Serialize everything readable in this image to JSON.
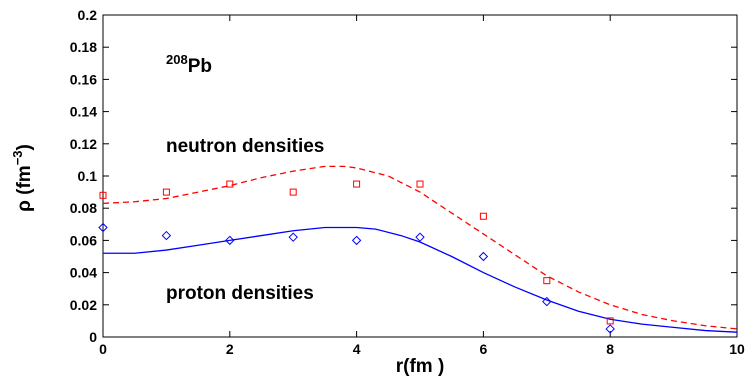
{
  "chart_data": {
    "type": "line",
    "title": "",
    "xlabel": "r(fm )",
    "ylabel_main": "ρ (fm",
    "ylabel_sup": "−3",
    "ylabel_close": ")",
    "xlim": [
      0,
      10
    ],
    "ylim": [
      0,
      0.2
    ],
    "xticks": [
      "0",
      "2",
      "4",
      "6",
      "8",
      "10"
    ],
    "yticks": [
      "0",
      "0.02",
      "0.04",
      "0.06",
      "0.08",
      "0.1",
      "0.12",
      "0.14",
      "0.16",
      "0.18",
      "0.2"
    ],
    "grid": false,
    "annotations": {
      "nucleus_mass": "208",
      "nucleus_symbol": "Pb",
      "neutron_label": "neutron densities",
      "proton_label": "proton densities"
    },
    "series": [
      {
        "kind": "line",
        "style": "dashed",
        "color": "#ff0000",
        "x": [
          0,
          0.5,
          1,
          1.5,
          2,
          2.5,
          3,
          3.5,
          3.8,
          4,
          4.5,
          5,
          5.5,
          6,
          6.5,
          7,
          7.5,
          8,
          8.5,
          9,
          9.5,
          10
        ],
        "y": [
          0.083,
          0.084,
          0.086,
          0.09,
          0.094,
          0.099,
          0.103,
          0.106,
          0.106,
          0.105,
          0.1,
          0.09,
          0.077,
          0.064,
          0.051,
          0.038,
          0.028,
          0.02,
          0.014,
          0.01,
          0.007,
          0.005
        ]
      },
      {
        "kind": "line",
        "style": "solid",
        "color": "#0000ff",
        "x": [
          0,
          0.5,
          1,
          1.5,
          2,
          2.5,
          3,
          3.5,
          4,
          4.3,
          4.7,
          5,
          5.5,
          6,
          6.5,
          7,
          7.5,
          8,
          8.5,
          9,
          9.5,
          10
        ],
        "y": [
          0.052,
          0.052,
          0.054,
          0.057,
          0.06,
          0.063,
          0.066,
          0.068,
          0.068,
          0.067,
          0.063,
          0.059,
          0.05,
          0.04,
          0.031,
          0.023,
          0.016,
          0.011,
          0.008,
          0.006,
          0.004,
          0.003
        ]
      },
      {
        "kind": "markers",
        "marker": "square",
        "color": "#ff0000",
        "x": [
          0,
          1,
          2,
          3,
          4,
          5,
          6,
          7,
          8
        ],
        "y": [
          0.088,
          0.09,
          0.095,
          0.09,
          0.095,
          0.095,
          0.075,
          0.035,
          0.01
        ]
      },
      {
        "kind": "markers",
        "marker": "diamond",
        "color": "#0000ff",
        "x": [
          0,
          1,
          2,
          3,
          4,
          5,
          6,
          7,
          8
        ],
        "y": [
          0.068,
          0.063,
          0.06,
          0.062,
          0.06,
          0.062,
          0.05,
          0.022,
          0.005
        ]
      }
    ]
  }
}
